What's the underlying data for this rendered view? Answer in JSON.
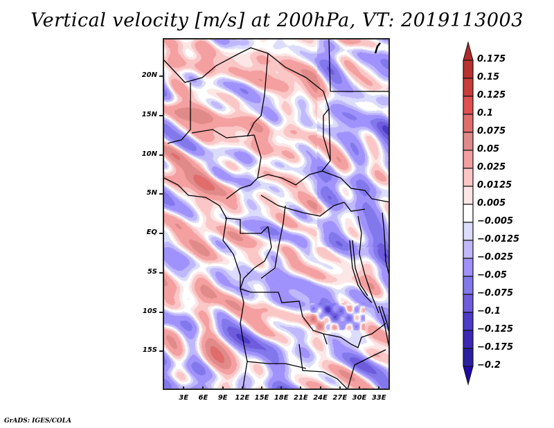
{
  "title": "Vertical velocity [m/s] at 200hPa, VT: 2019113003",
  "credit": "GrADS: IGES/COLA",
  "map": {
    "variable": "Vertical velocity",
    "units": "m/s",
    "level": "200hPa",
    "valid_time": "2019113003",
    "region": "Central Africa",
    "lat_range": [
      -20,
      25
    ],
    "lon_range": [
      0,
      35
    ],
    "y_axis_labels": [
      "20N",
      "15N",
      "10N",
      "5N",
      "EQ",
      "5S",
      "10S",
      "15S"
    ],
    "y_axis_values": [
      20,
      15,
      10,
      5,
      0,
      -5,
      -10,
      -15
    ],
    "x_axis_labels": [
      "3E",
      "6E",
      "9E",
      "12E",
      "15E",
      "18E",
      "21E",
      "24E",
      "27E",
      "30E",
      "33E"
    ],
    "x_axis_values": [
      3,
      6,
      9,
      12,
      15,
      18,
      21,
      24,
      27,
      30,
      33
    ]
  },
  "colorbar": {
    "levels": [
      "0.175",
      "0.15",
      "0.125",
      "0.1",
      "0.075",
      "0.05",
      "0.025",
      "0.0125",
      "0.005",
      "−0.005",
      "−0.0125",
      "−0.025",
      "−0.05",
      "−0.075",
      "−0.1",
      "−0.125",
      "−0.175",
      "−0.2"
    ],
    "colors": [
      "#b02a2a",
      "#b83232",
      "#c83c3c",
      "#e05050",
      "#e06c6c",
      "#e08a8a",
      "#f4a0a0",
      "#fac6c6",
      "#fde6e6",
      "#ffffff",
      "#dcdcfc",
      "#c0b8fc",
      "#a092fc",
      "#8278ec",
      "#6e5cdc",
      "#4c3cc8",
      "#3c28b4",
      "#2c20a0",
      "#2008a8"
    ],
    "max_arrow_color": "#b02a2a",
    "min_arrow_color": "#2008a8"
  }
}
